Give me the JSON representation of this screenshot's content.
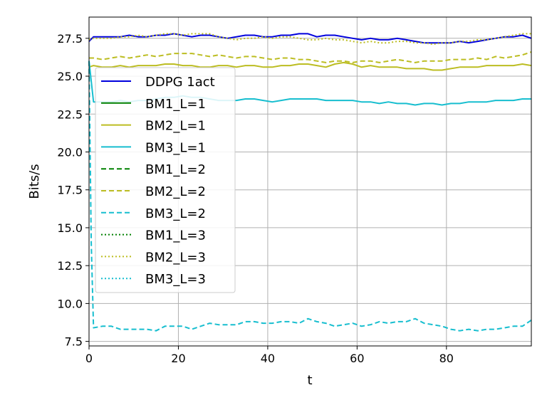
{
  "chart_data": {
    "type": "line",
    "xlabel": "t",
    "ylabel": "Bits/s",
    "xlim": [
      0,
      99
    ],
    "ylim": [
      7.2,
      28.9
    ],
    "xticks": [
      0,
      20,
      40,
      60,
      80
    ],
    "yticks": [
      7.5,
      10.0,
      12.5,
      15.0,
      17.5,
      20.0,
      22.5,
      25.0,
      27.5
    ],
    "grid": true,
    "legend_position": "upper-left",
    "series": [
      {
        "name": "DDPG 1act",
        "color": "#0000dd",
        "dash": "solid",
        "x": [
          0,
          1,
          3,
          5,
          7,
          9,
          11,
          13,
          15,
          17,
          19,
          21,
          23,
          25,
          27,
          29,
          31,
          33,
          35,
          37,
          39,
          41,
          43,
          45,
          47,
          49,
          51,
          53,
          55,
          57,
          59,
          61,
          63,
          65,
          67,
          69,
          71,
          73,
          75,
          77,
          79,
          81,
          83,
          85,
          87,
          89,
          91,
          93,
          95,
          97,
          99
        ],
        "y": [
          27.3,
          27.6,
          27.6,
          27.6,
          27.6,
          27.7,
          27.6,
          27.6,
          27.7,
          27.7,
          27.8,
          27.7,
          27.6,
          27.7,
          27.7,
          27.6,
          27.5,
          27.6,
          27.7,
          27.7,
          27.6,
          27.6,
          27.7,
          27.7,
          27.8,
          27.8,
          27.6,
          27.7,
          27.7,
          27.6,
          27.5,
          27.4,
          27.5,
          27.4,
          27.4,
          27.5,
          27.4,
          27.3,
          27.2,
          27.2,
          27.2,
          27.2,
          27.3,
          27.2,
          27.3,
          27.4,
          27.5,
          27.6,
          27.6,
          27.7,
          27.5
        ]
      },
      {
        "name": "BM1_L=1",
        "color": "#008000",
        "dash": "solid",
        "x": [
          0,
          99
        ],
        "y": [
          null,
          null
        ]
      },
      {
        "name": "BM2_L=1",
        "color": "#bcbd22",
        "dash": "solid",
        "x": [
          0,
          1,
          3,
          5,
          7,
          9,
          11,
          13,
          15,
          17,
          19,
          21,
          23,
          25,
          27,
          29,
          31,
          33,
          35,
          37,
          39,
          41,
          43,
          45,
          47,
          49,
          51,
          53,
          55,
          57,
          59,
          61,
          63,
          65,
          67,
          69,
          71,
          73,
          75,
          77,
          79,
          81,
          83,
          85,
          87,
          89,
          91,
          93,
          95,
          97,
          99
        ],
        "y": [
          25.6,
          25.7,
          25.6,
          25.6,
          25.7,
          25.6,
          25.7,
          25.7,
          25.7,
          25.8,
          25.8,
          25.7,
          25.7,
          25.6,
          25.6,
          25.7,
          25.7,
          25.6,
          25.7,
          25.7,
          25.6,
          25.6,
          25.7,
          25.7,
          25.8,
          25.8,
          25.7,
          25.6,
          25.8,
          25.9,
          25.8,
          25.6,
          25.7,
          25.6,
          25.6,
          25.6,
          25.5,
          25.5,
          25.5,
          25.4,
          25.4,
          25.5,
          25.6,
          25.6,
          25.6,
          25.7,
          25.7,
          25.7,
          25.7,
          25.8,
          25.7
        ]
      },
      {
        "name": "BM3_L=1",
        "color": "#17becf",
        "dash": "solid",
        "x": [
          0,
          1,
          3,
          5,
          7,
          9,
          11,
          13,
          15,
          17,
          19,
          21,
          23,
          25,
          27,
          29,
          31,
          33,
          35,
          37,
          39,
          41,
          43,
          45,
          47,
          49,
          51,
          53,
          55,
          57,
          59,
          61,
          63,
          65,
          67,
          69,
          71,
          73,
          75,
          77,
          79,
          81,
          83,
          85,
          87,
          89,
          91,
          93,
          95,
          97,
          99
        ],
        "y": [
          26.0,
          23.3,
          23.3,
          23.3,
          23.4,
          23.3,
          23.4,
          23.4,
          23.5,
          23.6,
          23.6,
          23.7,
          23.6,
          23.6,
          23.5,
          23.4,
          23.4,
          23.4,
          23.5,
          23.5,
          23.4,
          23.3,
          23.4,
          23.5,
          23.5,
          23.5,
          23.5,
          23.4,
          23.4,
          23.4,
          23.4,
          23.3,
          23.3,
          23.2,
          23.3,
          23.2,
          23.2,
          23.1,
          23.2,
          23.2,
          23.1,
          23.2,
          23.2,
          23.3,
          23.3,
          23.3,
          23.4,
          23.4,
          23.4,
          23.5,
          23.5
        ]
      },
      {
        "name": "BM1_L=2",
        "color": "#008000",
        "dash": "dashed",
        "x": [
          0,
          99
        ],
        "y": [
          null,
          null
        ]
      },
      {
        "name": "BM2_L=2",
        "color": "#bcbd22",
        "dash": "dashed",
        "x": [
          0,
          1,
          3,
          5,
          7,
          9,
          11,
          13,
          15,
          17,
          19,
          21,
          23,
          25,
          27,
          29,
          31,
          33,
          35,
          37,
          39,
          41,
          43,
          45,
          47,
          49,
          51,
          53,
          55,
          57,
          59,
          61,
          63,
          65,
          67,
          69,
          71,
          73,
          75,
          77,
          79,
          81,
          83,
          85,
          87,
          89,
          91,
          93,
          95,
          97,
          99
        ],
        "y": [
          26.2,
          26.2,
          26.1,
          26.2,
          26.3,
          26.2,
          26.3,
          26.4,
          26.3,
          26.4,
          26.5,
          26.5,
          26.5,
          26.4,
          26.3,
          26.4,
          26.3,
          26.2,
          26.3,
          26.3,
          26.2,
          26.1,
          26.2,
          26.2,
          26.1,
          26.1,
          26.0,
          25.9,
          26.0,
          26.0,
          25.9,
          26.0,
          26.0,
          25.9,
          26.0,
          26.1,
          26.0,
          25.9,
          26.0,
          26.0,
          26.0,
          26.1,
          26.1,
          26.1,
          26.2,
          26.1,
          26.3,
          26.2,
          26.3,
          26.4,
          26.6
        ]
      },
      {
        "name": "BM3_L=2",
        "color": "#17becf",
        "dash": "dashed",
        "x": [
          0,
          0.5,
          1,
          3,
          5,
          7,
          9,
          11,
          13,
          15,
          17,
          19,
          21,
          23,
          25,
          27,
          29,
          31,
          33,
          35,
          37,
          39,
          41,
          43,
          45,
          47,
          49,
          51,
          53,
          55,
          57,
          59,
          61,
          63,
          65,
          67,
          69,
          71,
          73,
          75,
          77,
          79,
          81,
          83,
          85,
          87,
          89,
          91,
          93,
          95,
          97,
          99
        ],
        "y": [
          26.0,
          14.0,
          8.4,
          8.5,
          8.5,
          8.3,
          8.3,
          8.3,
          8.3,
          8.2,
          8.5,
          8.5,
          8.5,
          8.3,
          8.5,
          8.7,
          8.6,
          8.6,
          8.6,
          8.8,
          8.8,
          8.7,
          8.7,
          8.8,
          8.8,
          8.7,
          9.0,
          8.8,
          8.7,
          8.5,
          8.6,
          8.7,
          8.5,
          8.6,
          8.8,
          8.7,
          8.8,
          8.8,
          9.0,
          8.7,
          8.6,
          8.5,
          8.3,
          8.2,
          8.3,
          8.2,
          8.3,
          8.3,
          8.4,
          8.5,
          8.5,
          8.9
        ]
      },
      {
        "name": "BM1_L=3",
        "color": "#008000",
        "dash": "dotted",
        "x": [
          0,
          99
        ],
        "y": [
          null,
          null
        ]
      },
      {
        "name": "BM2_L=3",
        "color": "#bcbd22",
        "dash": "dotted",
        "x": [
          0,
          1,
          3,
          5,
          7,
          9,
          11,
          13,
          15,
          17,
          19,
          21,
          23,
          25,
          27,
          29,
          31,
          33,
          35,
          37,
          39,
          41,
          43,
          45,
          47,
          49,
          51,
          53,
          55,
          57,
          59,
          61,
          63,
          65,
          67,
          69,
          71,
          73,
          75,
          77,
          79,
          81,
          83,
          85,
          87,
          89,
          91,
          93,
          95,
          97,
          99
        ],
        "y": [
          27.4,
          27.5,
          27.5,
          27.5,
          27.6,
          27.6,
          27.7,
          27.6,
          27.7,
          27.8,
          27.8,
          27.7,
          27.8,
          27.8,
          27.8,
          27.6,
          27.5,
          27.4,
          27.5,
          27.5,
          27.6,
          27.5,
          27.6,
          27.6,
          27.5,
          27.4,
          27.4,
          27.5,
          27.4,
          27.4,
          27.3,
          27.2,
          27.3,
          27.2,
          27.2,
          27.3,
          27.3,
          27.2,
          27.2,
          27.1,
          27.2,
          27.2,
          27.3,
          27.3,
          27.4,
          27.4,
          27.5,
          27.6,
          27.7,
          27.8,
          27.8
        ]
      },
      {
        "name": "BM3_L=3",
        "color": "#17becf",
        "dash": "dotted",
        "x": [
          0,
          99
        ],
        "y": [
          null,
          null
        ]
      }
    ]
  }
}
